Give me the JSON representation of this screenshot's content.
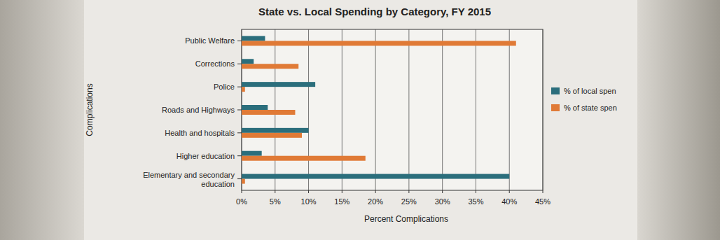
{
  "chart_data": {
    "type": "bar",
    "orientation": "horizontal",
    "title": "State vs. Local Spending by Category, FY 2015",
    "x_label": "Percent Complications",
    "y_label": "Complications",
    "categories": [
      "Public Welfare",
      "Corrections",
      "Police",
      "Roads and Highways",
      "Health and hospitals",
      "Higher education",
      "Elementary and secondary education"
    ],
    "series": [
      {
        "name": "% of local spen",
        "color": "#2b6e7c",
        "values": [
          3.5,
          1.8,
          11,
          3.9,
          10,
          3,
          40
        ]
      },
      {
        "name": "% of state spen",
        "color": "#e07a36",
        "values": [
          41,
          8.5,
          0.5,
          8,
          9,
          18.5,
          0.5
        ]
      }
    ],
    "xlim": [
      0,
      45
    ],
    "xticks": [
      {
        "value": 0,
        "label": "0%"
      },
      {
        "value": 5,
        "label": "5%"
      },
      {
        "value": 10,
        "label": "10%"
      },
      {
        "value": 15,
        "label": "15%"
      },
      {
        "value": 20,
        "label": "20%"
      },
      {
        "value": 25,
        "label": "25%"
      },
      {
        "value": 30,
        "label": "30%"
      },
      {
        "value": 35,
        "label": "35%"
      },
      {
        "value": 40,
        "label": "40%"
      },
      {
        "value": 45,
        "label": "45%"
      }
    ],
    "grid": true,
    "legend": "right"
  }
}
